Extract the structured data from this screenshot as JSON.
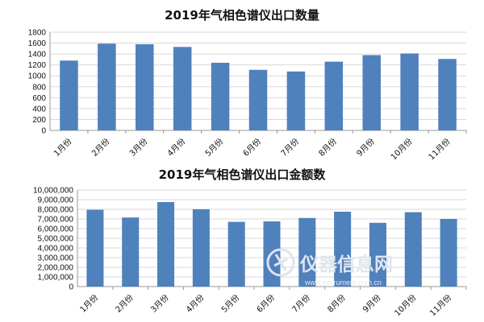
{
  "colors": {
    "bar": "#4f81bd"
  },
  "chart_data": [
    {
      "type": "bar",
      "title": "2019年气相色谱仪出口数量",
      "categories": [
        "1月份",
        "2月份",
        "3月份",
        "4月份",
        "5月份",
        "6月份",
        "7月份",
        "8月份",
        "9月份",
        "10月份",
        "11月份"
      ],
      "values": [
        1280,
        1590,
        1580,
        1530,
        1240,
        1110,
        1080,
        1260,
        1380,
        1410,
        1310
      ],
      "ylim": [
        0,
        1800
      ],
      "yticks": [
        0,
        200,
        400,
        600,
        800,
        1000,
        1200,
        1400,
        1600,
        1800
      ],
      "ytick_labels": [
        "0",
        "200",
        "400",
        "600",
        "800",
        "1000",
        "1200",
        "1400",
        "1600",
        "1800"
      ],
      "grid": true,
      "xlabel": "",
      "ylabel": ""
    },
    {
      "type": "bar",
      "title": "2019年气相色谱仪出口金额数",
      "categories": [
        "1月份",
        "2月份",
        "3月份",
        "4月份",
        "5月份",
        "6月份",
        "7月份",
        "8月份",
        "9月份",
        "10月份",
        "11月份"
      ],
      "values": [
        7950000,
        7150000,
        8750000,
        8000000,
        6700000,
        6750000,
        7100000,
        7750000,
        6600000,
        7700000,
        7000000
      ],
      "ylim": [
        0,
        10000000
      ],
      "yticks": [
        0,
        1000000,
        2000000,
        3000000,
        4000000,
        5000000,
        6000000,
        7000000,
        8000000,
        9000000,
        10000000
      ],
      "ytick_labels": [
        "0",
        "1,000,000",
        "2,000,000",
        "3,000,000",
        "4,000,000",
        "5,000,000",
        "6,000,000",
        "7,000,000",
        "8,000,000",
        "9,000,000",
        "10,000,000"
      ],
      "grid": true,
      "xlabel": "",
      "ylabel": ""
    }
  ],
  "watermark": {
    "text": "仪器信息网",
    "url": "www.instrument.com.cn"
  }
}
